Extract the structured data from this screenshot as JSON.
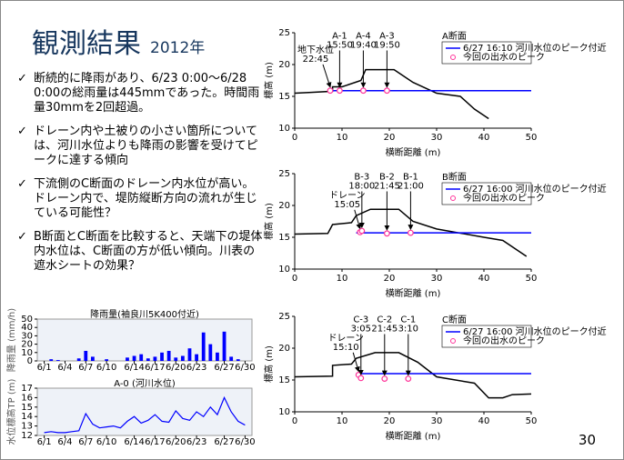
{
  "title": "観測結果",
  "year": "2012年",
  "page_number": "30",
  "bullets": [
    "断続的に降雨があり、6/23 0:00～6/28 0:00の総雨量は445mmであった。時間雨量30mmを2回超過。",
    "ドレーン内や土被りの小さい箇所については、河川水位よりも降雨の影響を受けてピークに達する傾向",
    "下流側のC断面のドレーン内水位が高い。ドレーン内で、堤防縦断方向の流れが生じている可能性？",
    "B断面とC断面を比較すると、天端下の堤体内水位は、C断面の方が低い傾向。川表の遮水シートの効果？"
  ],
  "chart_data": [
    {
      "type": "line",
      "title": "A断面",
      "xlabel": "横断距離 (m)",
      "ylabel": "標高 (m)",
      "xlim": [
        0,
        50
      ],
      "ylim": [
        10,
        25
      ],
      "xticks": [
        0,
        10,
        20,
        30,
        40,
        50
      ],
      "yticks": [
        10,
        15,
        20,
        25
      ],
      "series": [
        {
          "color": "#000000",
          "x": [
            0,
            3,
            8,
            8,
            10,
            14,
            15,
            21,
            25,
            30,
            35,
            38,
            41
          ],
          "values": [
            15.5,
            15.6,
            15.8,
            16.5,
            16.5,
            17.5,
            19.2,
            19.2,
            17.2,
            15.5,
            15,
            13,
            11.5
          ]
        },
        {
          "name": "6/27 16:10 河川水位のピーク付近",
          "color": "#0000ff",
          "x": [
            8,
            50
          ],
          "values": [
            15.9,
            15.9
          ]
        },
        {
          "name": "今回の出水のピーク",
          "color": "#ff3399",
          "marker": "circle",
          "x": [
            7.5,
            9.5,
            14.5,
            19.5
          ],
          "values": [
            15.9,
            15.9,
            15.9,
            15.9
          ],
          "labels": [
            "地下水位",
            "A-1",
            "A-4",
            "A-3"
          ],
          "times": [
            "22:45",
            "15:50",
            "19:40",
            "19:50"
          ]
        }
      ]
    },
    {
      "type": "line",
      "title": "B断面",
      "xlabel": "横断距離 (m)",
      "ylabel": "標高 (m)",
      "xlim": [
        0,
        50
      ],
      "ylim": [
        10,
        25
      ],
      "xticks": [
        0,
        10,
        20,
        30,
        40,
        50
      ],
      "yticks": [
        10,
        15,
        20,
        25
      ],
      "series": [
        {
          "color": "#000000",
          "x": [
            0,
            7,
            8,
            12,
            13,
            16,
            22,
            25,
            30,
            40,
            44,
            47,
            49
          ],
          "values": [
            15.5,
            15.6,
            17,
            17.3,
            18.4,
            19.4,
            19.4,
            17.5,
            16.3,
            15,
            14.5,
            13,
            12
          ]
        },
        {
          "name": "6/27 16:00 河川水位のピーク付近",
          "color": "#0000ff",
          "x": [
            13,
            50
          ],
          "values": [
            15.7,
            15.7
          ]
        },
        {
          "name": "今回の出水のピーク",
          "color": "#ff3399",
          "marker": "circle",
          "x": [
            13.8,
            14.2,
            19.5,
            24.5
          ],
          "values": [
            15.8,
            16,
            15.6,
            15.7
          ],
          "labels": [
            "ドレーン",
            "B-3",
            "B-2",
            "B-1"
          ],
          "times": [
            "15:05",
            "18:00",
            "21:45",
            "21:00"
          ]
        }
      ]
    },
    {
      "type": "line",
      "title": "C断面",
      "xlabel": "横断距離 (m)",
      "ylabel": "標高 (m)",
      "xlim": [
        0,
        50
      ],
      "ylim": [
        10,
        25
      ],
      "xticks": [
        0,
        10,
        20,
        30,
        40,
        50
      ],
      "yticks": [
        10,
        15,
        20,
        25
      ],
      "series": [
        {
          "color": "#000000",
          "x": [
            0,
            8,
            8,
            12,
            13,
            17,
            22,
            26,
            30,
            38,
            41,
            44,
            46,
            50
          ],
          "values": [
            15.5,
            15.6,
            17.3,
            17.5,
            18.4,
            19.3,
            19.3,
            17.8,
            15.5,
            14.5,
            12.2,
            12.2,
            12.7,
            12.8
          ]
        },
        {
          "name": "6/27 16:00 河川水位のピーク付近",
          "color": "#0000ff",
          "x": [
            13,
            50
          ],
          "values": [
            16,
            16
          ]
        },
        {
          "name": "今回の出水のピーク",
          "color": "#ff3399",
          "marker": "circle",
          "x": [
            13.5,
            14,
            19,
            24
          ],
          "values": [
            15.8,
            15.3,
            15.2,
            15.2
          ],
          "labels": [
            "ドレーン",
            "C-3",
            "C-2",
            "C-1"
          ],
          "times": [
            "15:10",
            "3:05",
            "21:45",
            "3:10"
          ]
        }
      ]
    },
    {
      "type": "bar",
      "title": "降雨量(袖良川5K400付近)",
      "ylabel": "降雨量 (mm/h)",
      "xlim": [
        0,
        31
      ],
      "ylim": [
        0,
        50
      ],
      "yticks": [
        0,
        10,
        20,
        30,
        40,
        50
      ],
      "xticks": [
        {
          "value": 1,
          "label": "6/1"
        },
        {
          "value": 4,
          "label": "6/4"
        },
        {
          "value": 7,
          "label": "6/7"
        },
        {
          "value": 10,
          "label": "6/10"
        },
        {
          "value": 14,
          "label": "6/14"
        },
        {
          "value": 17,
          "label": "6/17"
        },
        {
          "value": 20,
          "label": "6/20"
        },
        {
          "value": 23,
          "label": "6/23"
        },
        {
          "value": 27,
          "label": "6/27"
        },
        {
          "value": 30,
          "label": "6/30"
        }
      ],
      "color": "#0000ff",
      "x": [
        1,
        2,
        3,
        4,
        5,
        6,
        7,
        8,
        9,
        10,
        11,
        12,
        13,
        14,
        15,
        16,
        17,
        18,
        19,
        20,
        21,
        22,
        23,
        24,
        25,
        26,
        27,
        28,
        29,
        30
      ],
      "values": [
        0,
        2,
        1,
        0,
        0,
        3,
        12,
        5,
        0,
        2,
        0,
        0,
        4,
        6,
        8,
        3,
        5,
        10,
        12,
        4,
        6,
        15,
        8,
        34,
        20,
        10,
        35,
        5,
        2,
        0
      ]
    },
    {
      "type": "line",
      "title": "A-0 (河川水位)",
      "ylabel": "水位標高TP (m)",
      "xlim": [
        0,
        31
      ],
      "ylim": [
        12,
        17
      ],
      "yticks": [
        12,
        13,
        14,
        15,
        16,
        17
      ],
      "xticks": [
        {
          "value": 1,
          "label": "6/1"
        },
        {
          "value": 4,
          "label": "6/4"
        },
        {
          "value": 7,
          "label": "6/7"
        },
        {
          "value": 10,
          "label": "6/10"
        },
        {
          "value": 14,
          "label": "6/14"
        },
        {
          "value": 17,
          "label": "6/17"
        },
        {
          "value": 20,
          "label": "6/20"
        },
        {
          "value": 23,
          "label": "6/23"
        },
        {
          "value": 27,
          "label": "6/27"
        },
        {
          "value": 30,
          "label": "6/30"
        }
      ],
      "series": [
        {
          "color": "#0000ff",
          "x": [
            1,
            2,
            3,
            4,
            5,
            6,
            7,
            8,
            9,
            10,
            11,
            12,
            13,
            14,
            15,
            16,
            17,
            18,
            19,
            20,
            21,
            22,
            23,
            24,
            25,
            26,
            27,
            28,
            29,
            30
          ],
          "values": [
            12.3,
            12.4,
            12.3,
            12.3,
            12.4,
            12.5,
            14.3,
            13.2,
            12.8,
            12.9,
            13,
            12.8,
            13.5,
            14,
            13.3,
            13.6,
            14.2,
            13.5,
            13.4,
            14.6,
            13.8,
            13.6,
            14.5,
            14,
            15,
            14.2,
            16,
            14.5,
            13.5,
            13.1
          ]
        }
      ]
    }
  ]
}
